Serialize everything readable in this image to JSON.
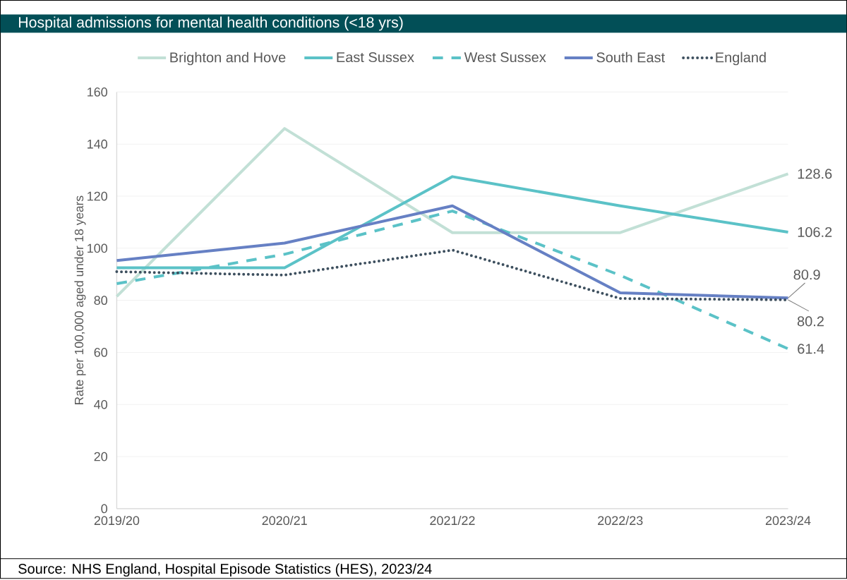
{
  "chart_data": {
    "type": "line",
    "title": "Hospital admissions for mental health conditions (<18 yrs)",
    "ylabel": "Rate per 100,000 aged under 18 years",
    "categories": [
      "2019/20",
      "2020/21",
      "2021/22",
      "2022/23",
      "2023/24"
    ],
    "series": [
      {
        "name": "Brighton and Hove",
        "color": "#c2e0d6",
        "line_style": "solid",
        "values": [
          81.5,
          146,
          106,
          106,
          128.6
        ],
        "value_labels": [
          null,
          null,
          null,
          null,
          "128.6"
        ]
      },
      {
        "name": "East Sussex",
        "color": "#5bc2c7",
        "line_style": "solid",
        "values": [
          92.5,
          92.5,
          127.5,
          116.3,
          106.2
        ],
        "value_labels": [
          null,
          null,
          null,
          null,
          "106.2"
        ]
      },
      {
        "name": "West Sussex",
        "color": "#5bc2c7",
        "line_style": "dashed",
        "values": [
          86.4,
          97.7,
          114.3,
          89.6,
          61.4
        ],
        "value_labels": [
          null,
          null,
          null,
          null,
          "61.4"
        ]
      },
      {
        "name": "South East",
        "color": "#6680c4",
        "line_style": "solid",
        "values": [
          95.3,
          102,
          116.3,
          82.9,
          80.9
        ],
        "value_labels": [
          null,
          null,
          null,
          null,
          "80.9"
        ]
      },
      {
        "name": "England",
        "color": "#3d4f5e",
        "line_style": "dotted",
        "values": [
          91,
          89.7,
          99.3,
          80.7,
          80.2
        ],
        "value_labels": [
          null,
          null,
          null,
          null,
          "80.2"
        ]
      }
    ],
    "ylim": [
      0,
      160
    ],
    "yticks": [
      0,
      20,
      40,
      60,
      80,
      100,
      120,
      140,
      160
    ],
    "grid": "y",
    "legend": "top",
    "annotations": [
      "Source: NHS England, Hospital Episode Statistics (HES), 2023/24"
    ]
  }
}
